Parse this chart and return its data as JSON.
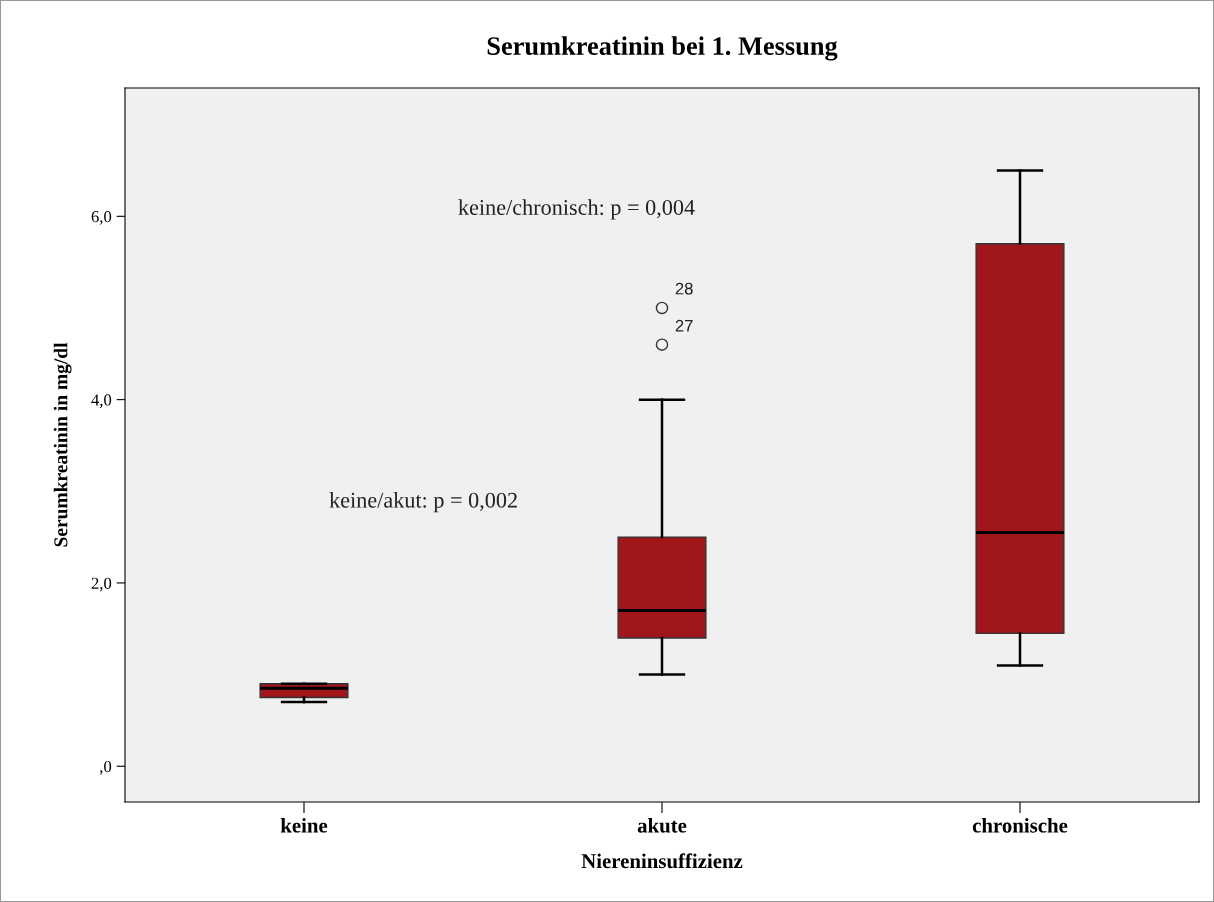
{
  "chart_data": {
    "type": "box",
    "title": "Serumkreatinin bei 1. Messung",
    "xlabel": "Niereninsuffizienz",
    "ylabel": "Serumkreatinin in mg/dl",
    "categories": [
      "keine",
      "akute",
      "chronische"
    ],
    "boxes": [
      {
        "low": 0.7,
        "q1": 0.75,
        "median": 0.85,
        "q3": 0.9,
        "high": 0.9
      },
      {
        "low": 1.0,
        "q1": 1.4,
        "median": 1.7,
        "q3": 2.5,
        "high": 4.0,
        "outliers": [
          4.6,
          5.0
        ]
      },
      {
        "low": 1.1,
        "q1": 1.45,
        "median": 2.55,
        "q3": 5.7,
        "high": 6.5
      }
    ],
    "color": "#a0161a",
    "ylim": [
      -0.39,
      7.4
    ],
    "yticks": [
      {
        "value": 0,
        "label": ",0"
      },
      {
        "value": 2,
        "label": "2,0"
      },
      {
        "value": 4,
        "label": "4,0"
      },
      {
        "value": 6,
        "label": "6,0"
      }
    ],
    "grid": false,
    "annotations": [
      "keine/chronisch: p = 0,004",
      "keine/akut: p = 0,002",
      "27",
      "28"
    ]
  }
}
